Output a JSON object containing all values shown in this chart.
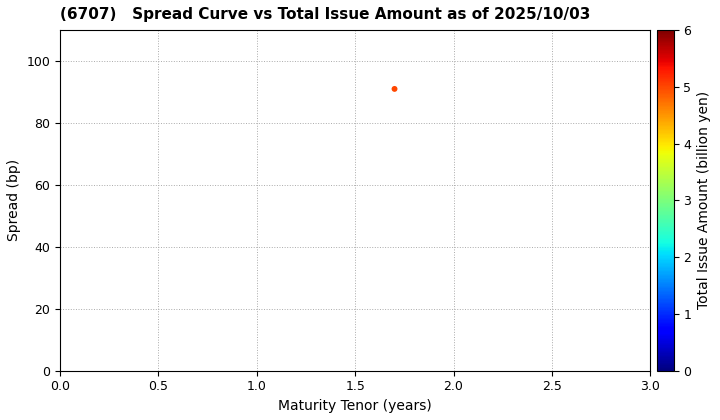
{
  "title": "(6707)   Spread Curve vs Total Issue Amount as of 2025/10/03",
  "xlabel": "Maturity Tenor (years)",
  "ylabel": "Spread (bp)",
  "colorbar_label": "Total Issue Amount (billion yen)",
  "xlim": [
    0.0,
    3.0
  ],
  "ylim": [
    0,
    110
  ],
  "xticks": [
    0.0,
    0.5,
    1.0,
    1.5,
    2.0,
    2.5,
    3.0
  ],
  "yticks": [
    0,
    20,
    40,
    60,
    80,
    100
  ],
  "colorbar_min": 0,
  "colorbar_max": 6,
  "colorbar_ticks": [
    0,
    1,
    2,
    3,
    4,
    5,
    6
  ],
  "scatter_x": [
    1.7
  ],
  "scatter_y": [
    91
  ],
  "scatter_color": [
    5.0
  ],
  "scatter_size": 18,
  "background_color": "#ffffff",
  "grid_color": "#aaaaaa",
  "title_fontsize": 11,
  "axis_fontsize": 10,
  "tick_fontsize": 9
}
